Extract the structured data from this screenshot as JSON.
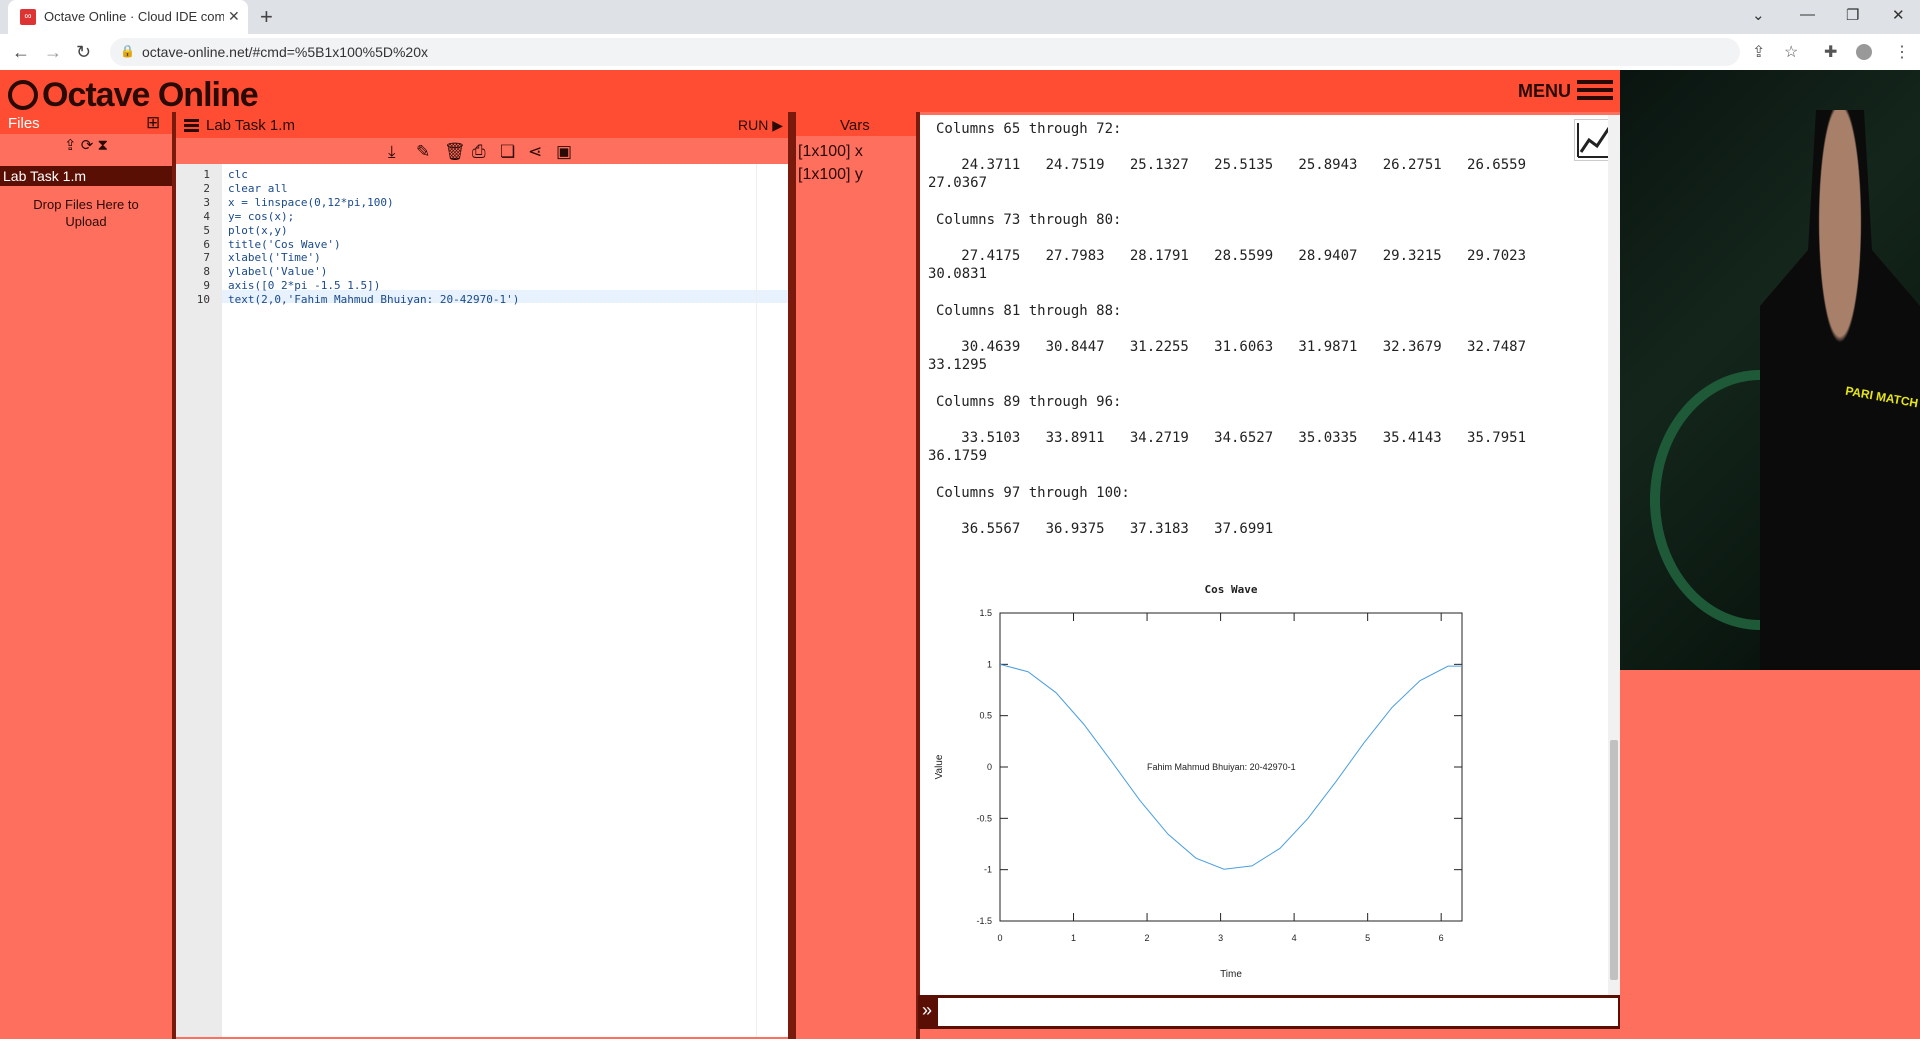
{
  "browser": {
    "tab_title": "Octave Online · Cloud IDE comp",
    "url": "octave-online.net/#cmd=%5B1x100%5D%20x"
  },
  "app": {
    "logo_text": "Octave Online",
    "menu_label": "MENU"
  },
  "files": {
    "header": "Files",
    "items": [
      "Lab Task 1.m"
    ],
    "drop_text": "Drop Files Here to Upload"
  },
  "editor": {
    "filename": "Lab Task 1.m",
    "run_label": "RUN ▶",
    "lines": [
      "clc",
      "clear all",
      "x = linspace(0,12*pi,100)",
      "y= cos(x);",
      "plot(x,y)",
      "title('Cos Wave')",
      "xlabel('Time')",
      "ylabel('Value')",
      "axis([0 2*pi -1.5 1.5])",
      "text(2,0,'Fahim Mahmud Bhuiyan: 20-42970-1')"
    ]
  },
  "vars": {
    "header": "Vars",
    "items": [
      "[1x100] x",
      "[1x100] y"
    ]
  },
  "console": {
    "blocks": [
      {
        "header": "Columns 65 through 72:",
        "values": "   24.3711   24.7519   25.1327   25.5135   25.8943   26.2751   26.6559",
        "wrap": "27.0367"
      },
      {
        "header": "Columns 73 through 80:",
        "values": "   27.4175   27.7983   28.1791   28.5599   28.9407   29.3215   29.7023",
        "wrap": "30.0831"
      },
      {
        "header": "Columns 81 through 88:",
        "values": "   30.4639   30.8447   31.2255   31.6063   31.9871   32.3679   32.7487",
        "wrap": "33.1295"
      },
      {
        "header": "Columns 89 through 96:",
        "values": "   33.5103   33.8911   34.2719   34.6527   35.0335   35.4143   35.7951",
        "wrap": "36.1759"
      },
      {
        "header": "Columns 97 through 100:",
        "values": "   36.5567   36.9375   37.3183   37.6991",
        "wrap": ""
      }
    ]
  },
  "chart_data": {
    "type": "line",
    "title": "Cos Wave",
    "xlabel": "Time",
    "ylabel": "Value",
    "xlim": [
      0,
      6.2832
    ],
    "ylim": [
      -1.5,
      1.5
    ],
    "xticks": [
      0,
      1,
      2,
      3,
      4,
      5,
      6
    ],
    "yticks": [
      -1.5,
      -1,
      -0.5,
      0,
      0.5,
      1,
      1.5
    ],
    "series": [
      {
        "name": "",
        "color": "#4a9ee0",
        "x": [
          0,
          0.3808,
          0.7616,
          1.1424,
          1.5232,
          1.904,
          2.2848,
          2.6656,
          3.0464,
          3.4272,
          3.808,
          4.1888,
          4.5696,
          4.9504,
          5.3312,
          5.712,
          6.0928,
          6.4736
        ],
        "y": [
          1,
          0.928,
          0.724,
          0.414,
          0.048,
          -0.327,
          -0.654,
          -0.888,
          -0.996,
          -0.963,
          -0.792,
          -0.5,
          -0.142,
          0.236,
          0.58,
          0.841,
          0.982,
          0.983
        ]
      }
    ],
    "annotation": {
      "text": "Fahim Mahmud Bhuiyan: 20-42970-1",
      "x": 2,
      "y": 0
    }
  }
}
